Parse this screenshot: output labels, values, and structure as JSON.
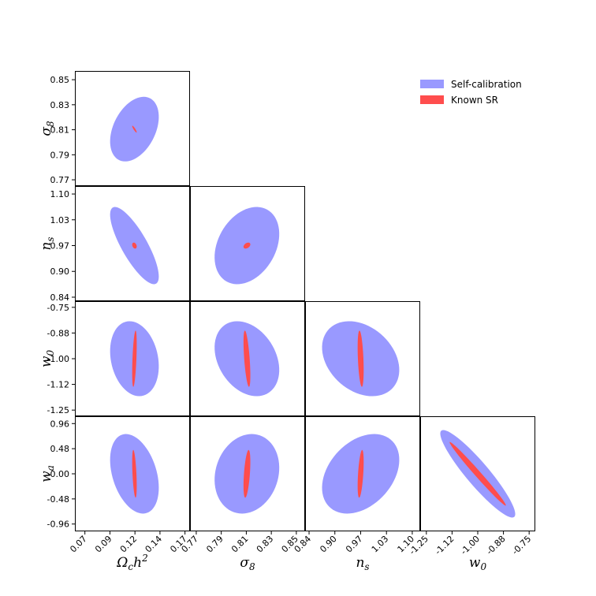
{
  "chart_data": {
    "type": "corner-ellipse",
    "params": [
      {
        "key": "omch2",
        "label_base": "Ω",
        "label_sub": "c",
        "label_post": "h",
        "label_sup": "2",
        "ticks": [
          "0.07",
          "0.09",
          "0.12",
          "0.14",
          "0.17"
        ],
        "tick_values": [
          0.07,
          0.095,
          0.12,
          0.145,
          0.17
        ],
        "range": [
          0.06,
          0.175
        ]
      },
      {
        "key": "sigma8",
        "label_base": "σ",
        "label_sub": "8",
        "ticks": [
          "0.77",
          "0.79",
          "0.81",
          "0.83",
          "0.85"
        ],
        "tick_values": [
          0.77,
          0.79,
          0.81,
          0.83,
          0.85
        ],
        "range": [
          0.765,
          0.857
        ]
      },
      {
        "key": "ns",
        "label_base": "n",
        "label_sub": "s",
        "ticks": [
          "0.84",
          "0.90",
          "0.97",
          "1.03",
          "1.10"
        ],
        "tick_values": [
          0.84,
          0.905,
          0.97,
          1.035,
          1.1
        ],
        "range": [
          0.83,
          1.12
        ]
      },
      {
        "key": "w0",
        "label_base": "w",
        "label_sub": "0",
        "ticks": [
          "-1.25",
          "-1.12",
          "-1.00",
          "-0.88",
          "-0.75"
        ],
        "tick_values": [
          -1.25,
          -1.125,
          -1.0,
          -0.875,
          -0.75
        ],
        "range": [
          -1.28,
          -0.72
        ]
      },
      {
        "key": "wa",
        "label_base": "w",
        "label_sub": "a",
        "ticks": [
          "-0.96",
          "-0.48",
          "0.00",
          "0.48",
          "0.96"
        ],
        "tick_values": [
          -0.96,
          -0.48,
          0.0,
          0.48,
          0.96
        ],
        "range": [
          -1.1,
          1.1
        ]
      }
    ],
    "series": [
      {
        "name": "Self-calibration",
        "color": "#9999ff"
      },
      {
        "name": "Known SR",
        "color": "#ff4d4d"
      }
    ],
    "ellipses": [
      {
        "x": "omch2",
        "y": "sigma8",
        "self": {
          "cx": 0.1195,
          "cy": 0.8105,
          "sx": 0.016,
          "sy": 0.017,
          "rho": 0.38
        },
        "known": {
          "cx": 0.1195,
          "cy": 0.8105,
          "sx": 0.0015,
          "sy": 0.0018,
          "rho": -0.9
        }
      },
      {
        "x": "omch2",
        "y": "ns",
        "self": {
          "cx": 0.1195,
          "cy": 0.97,
          "sx": 0.016,
          "sy": 0.064,
          "rho": -0.8
        },
        "known": {
          "cx": 0.1195,
          "cy": 0.97,
          "sx": 0.0015,
          "sy": 0.005,
          "rho": -0.3
        }
      },
      {
        "x": "sigma8",
        "y": "ns",
        "self": {
          "cx": 0.8105,
          "cy": 0.97,
          "sx": 0.017,
          "sy": 0.064,
          "rho": 0.3
        },
        "known": {
          "cx": 0.8105,
          "cy": 0.97,
          "sx": 0.0018,
          "sy": 0.005,
          "rho": 0.4
        }
      },
      {
        "x": "omch2",
        "y": "w0",
        "self": {
          "cx": 0.1195,
          "cy": -1.0,
          "sx": 0.016,
          "sy": 0.12,
          "rho": -0.2
        },
        "known": {
          "cx": 0.1195,
          "cy": -1.0,
          "sx": 0.0015,
          "sy": 0.09,
          "rho": 0.5
        }
      },
      {
        "x": "sigma8",
        "y": "w0",
        "self": {
          "cx": 0.8105,
          "cy": -1.0,
          "sx": 0.017,
          "sy": 0.12,
          "rho": -0.3
        },
        "known": {
          "cx": 0.8105,
          "cy": -1.0,
          "sx": 0.0018,
          "sy": 0.09,
          "rho": -0.6
        }
      },
      {
        "x": "ns",
        "y": "w0",
        "self": {
          "cx": 0.97,
          "cy": -1.0,
          "sx": 0.064,
          "sy": 0.12,
          "rho": -0.3
        },
        "known": {
          "cx": 0.97,
          "cy": -1.0,
          "sx": 0.005,
          "sy": 0.09,
          "rho": -0.4
        }
      },
      {
        "x": "omch2",
        "y": "wa",
        "self": {
          "cx": 0.1195,
          "cy": 0.0,
          "sx": 0.016,
          "sy": 0.5,
          "rho": -0.35
        },
        "known": {
          "cx": 0.1195,
          "cy": 0.0,
          "sx": 0.0015,
          "sy": 0.3,
          "rho": -0.5
        }
      },
      {
        "x": "sigma8",
        "y": "wa",
        "self": {
          "cx": 0.8105,
          "cy": 0.0,
          "sx": 0.017,
          "sy": 0.5,
          "rho": 0.15
        },
        "known": {
          "cx": 0.8105,
          "cy": 0.0,
          "sx": 0.0018,
          "sy": 0.3,
          "rho": 0.5
        }
      },
      {
        "x": "ns",
        "y": "wa",
        "self": {
          "cx": 0.97,
          "cy": 0.0,
          "sx": 0.064,
          "sy": 0.5,
          "rho": 0.35
        },
        "known": {
          "cx": 0.97,
          "cy": 0.0,
          "sx": 0.005,
          "sy": 0.3,
          "rho": 0.5
        }
      },
      {
        "x": "w0",
        "y": "wa",
        "self": {
          "cx": -1.0,
          "cy": 0.0,
          "sx": 0.12,
          "sy": 0.55,
          "rho": -0.92
        },
        "known": {
          "cx": -1.0,
          "cy": 0.0,
          "sx": 0.09,
          "sy": 0.4,
          "rho": -0.99
        }
      }
    ],
    "legend_position": "top-right"
  }
}
